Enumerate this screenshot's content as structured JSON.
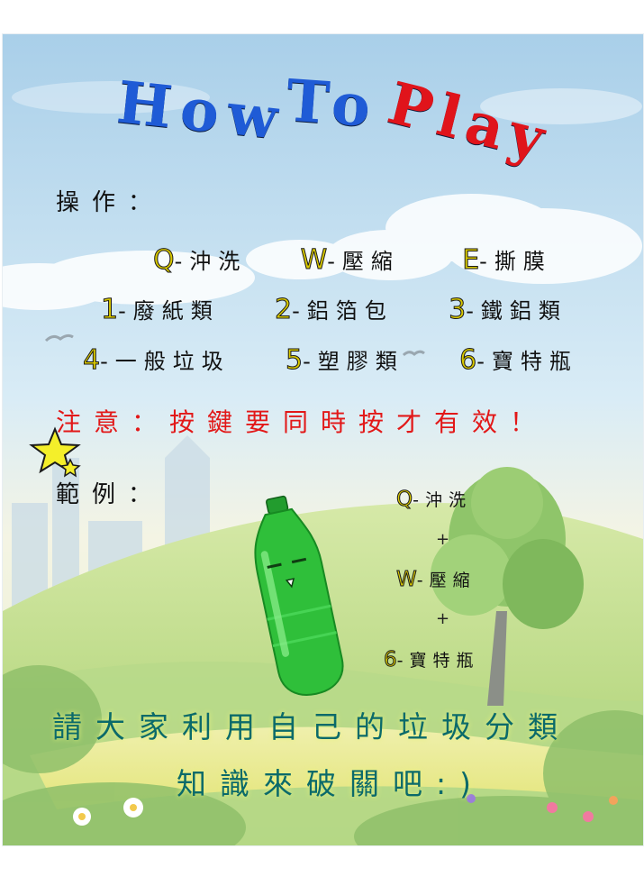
{
  "title": {
    "word1": "How",
    "word2": "To",
    "word3": "Play"
  },
  "controls_label": "操作：",
  "controls": [
    {
      "key": "Q",
      "text": "-沖洗"
    },
    {
      "key": "W",
      "text": "-壓縮"
    },
    {
      "key": "E",
      "text": "-撕膜"
    }
  ],
  "categories_row1": [
    {
      "key": "1",
      "text": "-廢紙類"
    },
    {
      "key": "2",
      "text": "-鋁箔包"
    },
    {
      "key": "3",
      "text": "-鐵鋁類"
    }
  ],
  "categories_row2": [
    {
      "key": "4",
      "text": "-一般垃圾"
    },
    {
      "key": "5",
      "text": "-塑膠類"
    },
    {
      "key": "6",
      "text": "-寶特瓶"
    }
  ],
  "notice": "注意：按鍵要同時按才有效！",
  "example_label": "範例：",
  "example": {
    "step1_key": "Q",
    "step1_text": "-沖洗",
    "plus": "+",
    "step2_key": "W",
    "step2_text": "-壓縮",
    "step3_key": "6",
    "step3_text": "-寶特瓶"
  },
  "closing_line1": "請大家利用自己的垃圾分類",
  "closing_line2": "知識來破關吧:)",
  "colors": {
    "title_blue": "#1f5bd6",
    "title_red": "#e0141b",
    "key_yellow": "#d8c800",
    "notice_red": "#e21818",
    "closing_teal": "#0b6a6a",
    "bottle_green": "#2fbf3a"
  },
  "icons": [
    "star-icon",
    "bird-icon",
    "bottle-character",
    "tree-illustration",
    "flower-icon"
  ]
}
